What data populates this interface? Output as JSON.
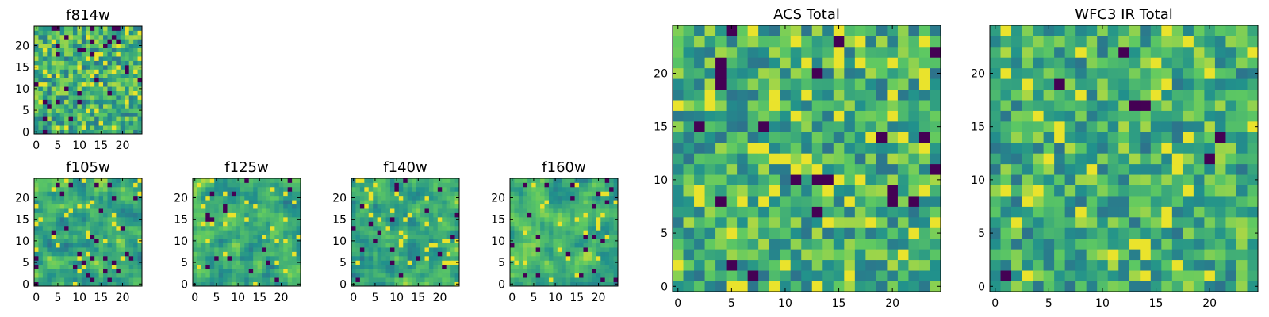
{
  "chart_data": [
    {
      "id": "f814w",
      "type": "heatmap",
      "title": "f814w",
      "grid_size": 25,
      "colormap": "viridis",
      "xlim": [
        -0.5,
        24.5
      ],
      "ylim": [
        -0.5,
        24.5
      ],
      "xticks": [
        0,
        5,
        10,
        15,
        20
      ],
      "yticks": [
        0,
        5,
        10,
        15,
        20
      ],
      "xticklabels": [
        "0",
        "5",
        "10",
        "15",
        "20"
      ],
      "yticklabels": [
        "0",
        "5",
        "10",
        "15",
        "20"
      ],
      "seed": 11,
      "smooth": 0,
      "dark_fraction": 0.05,
      "bright_fraction": 0.06
    },
    {
      "id": "f105w",
      "type": "heatmap",
      "title": "f105w",
      "grid_size": 25,
      "colormap": "viridis",
      "xlim": [
        -0.5,
        24.5
      ],
      "ylim": [
        -0.5,
        24.5
      ],
      "xticks": [
        0,
        5,
        10,
        15,
        20
      ],
      "yticks": [
        0,
        5,
        10,
        15,
        20
      ],
      "xticklabels": [
        "0",
        "5",
        "10",
        "15",
        "20"
      ],
      "yticklabels": [
        "0",
        "5",
        "10",
        "15",
        "20"
      ],
      "seed": 23,
      "smooth": 1,
      "dark_fraction": 0.04,
      "bright_fraction": 0.05
    },
    {
      "id": "f125w",
      "type": "heatmap",
      "title": "f125w",
      "grid_size": 25,
      "colormap": "viridis",
      "xlim": [
        -0.5,
        24.5
      ],
      "ylim": [
        -0.5,
        24.5
      ],
      "xticks": [
        0,
        5,
        10,
        15,
        20
      ],
      "yticks": [
        0,
        5,
        10,
        15,
        20
      ],
      "xticklabels": [
        "0",
        "5",
        "10",
        "15",
        "20"
      ],
      "yticklabels": [
        "0",
        "5",
        "10",
        "15",
        "20"
      ],
      "seed": 37,
      "smooth": 1,
      "dark_fraction": 0.03,
      "bright_fraction": 0.05
    },
    {
      "id": "f140w",
      "type": "heatmap",
      "title": "f140w",
      "grid_size": 25,
      "colormap": "viridis",
      "xlim": [
        -0.5,
        24.5
      ],
      "ylim": [
        -0.5,
        24.5
      ],
      "xticks": [
        0,
        5,
        10,
        15,
        20
      ],
      "yticks": [
        0,
        5,
        10,
        15,
        20
      ],
      "xticklabels": [
        "0",
        "5",
        "10",
        "15",
        "20"
      ],
      "yticklabels": [
        "0",
        "5",
        "10",
        "15",
        "20"
      ],
      "seed": 41,
      "smooth": 1,
      "dark_fraction": 0.04,
      "bright_fraction": 0.06
    },
    {
      "id": "f160w",
      "type": "heatmap",
      "title": "f160w",
      "grid_size": 25,
      "colormap": "viridis",
      "xlim": [
        -0.5,
        24.5
      ],
      "ylim": [
        -0.5,
        24.5
      ],
      "xticks": [
        0,
        5,
        10,
        15,
        20
      ],
      "yticks": [
        0,
        5,
        10,
        15,
        20
      ],
      "xticklabels": [
        "0",
        "5",
        "10",
        "15",
        "20"
      ],
      "yticklabels": [
        "0",
        "5",
        "10",
        "15",
        "20"
      ],
      "seed": 53,
      "smooth": 1,
      "dark_fraction": 0.05,
      "bright_fraction": 0.05
    },
    {
      "id": "acs-total",
      "type": "heatmap",
      "title": "ACS Total",
      "grid_size": 25,
      "colormap": "viridis",
      "xlim": [
        -0.5,
        24.5
      ],
      "ylim": [
        -0.5,
        24.5
      ],
      "xticks": [
        0,
        5,
        10,
        15,
        20
      ],
      "yticks": [
        0,
        5,
        10,
        15,
        20
      ],
      "xticklabels": [
        "0",
        "5",
        "10",
        "15",
        "20"
      ],
      "yticklabels": [
        "0",
        "5",
        "10",
        "15",
        "20"
      ],
      "seed": 67,
      "smooth": 0,
      "dark_fraction": 0.025,
      "bright_fraction": 0.07
    },
    {
      "id": "wfc3-ir-total",
      "type": "heatmap",
      "title": "WFC3 IR Total",
      "grid_size": 25,
      "colormap": "viridis",
      "xlim": [
        -0.5,
        24.5
      ],
      "ylim": [
        -0.5,
        24.5
      ],
      "xticks": [
        0,
        5,
        10,
        15,
        20
      ],
      "yticks": [
        0,
        5,
        10,
        15,
        20
      ],
      "xticklabels": [
        "0",
        "5",
        "10",
        "15",
        "20"
      ],
      "yticklabels": [
        "0",
        "5",
        "10",
        "15",
        "20"
      ],
      "seed": 79,
      "smooth": 0,
      "dark_fraction": 0.02,
      "bright_fraction": 0.06
    }
  ],
  "colors": {
    "viridis_stops": [
      "#440154",
      "#3b528b",
      "#21918c",
      "#5ec962",
      "#fde725"
    ],
    "axes_frame": "#000000",
    "background": "#ffffff"
  }
}
